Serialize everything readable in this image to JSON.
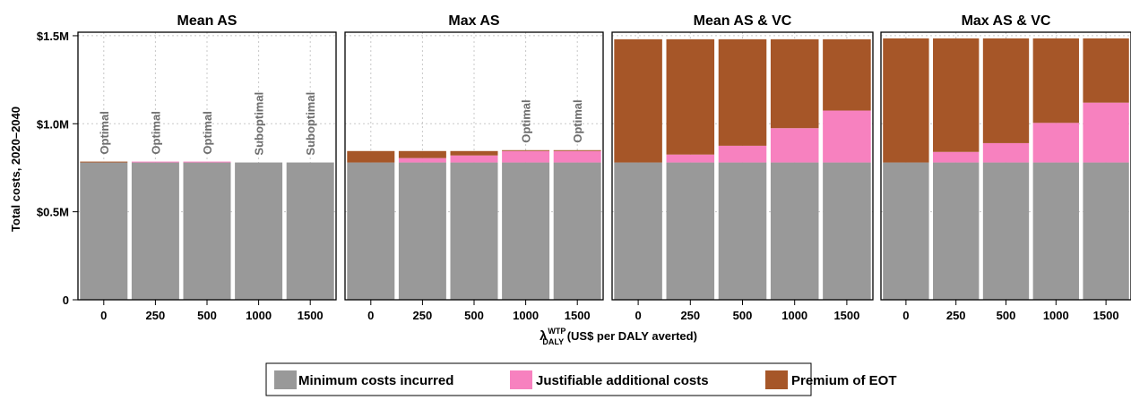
{
  "chart_data": {
    "type": "bar",
    "stacked": true,
    "panels": [
      {
        "title": "Mean AS",
        "categories": [
          "0",
          "250",
          "500",
          "1000",
          "1500"
        ],
        "series": [
          {
            "name": "Minimum costs incurred",
            "values": [
              780000,
              780000,
              780000,
              780000,
              780000
            ]
          },
          {
            "name": "Justifiable additional costs",
            "values": [
              0,
              5000,
              5000,
              0,
              0
            ]
          },
          {
            "name": "Premium of EOT",
            "values": [
              5000,
              0,
              0,
              0,
              0
            ]
          }
        ],
        "annotations": [
          "Optimal",
          "Optimal",
          "Optimal",
          "Suboptimal",
          "Suboptimal"
        ]
      },
      {
        "title": "Max AS",
        "categories": [
          "0",
          "250",
          "500",
          "1000",
          "1500"
        ],
        "series": [
          {
            "name": "Minimum costs incurred",
            "values": [
              780000,
              780000,
              780000,
              780000,
              780000
            ]
          },
          {
            "name": "Justifiable additional costs",
            "values": [
              0,
              25000,
              40000,
              65000,
              65000
            ]
          },
          {
            "name": "Premium of EOT",
            "values": [
              65000,
              40000,
              25000,
              5000,
              5000
            ]
          }
        ],
        "annotations": [
          "",
          "",
          "",
          "Optimal",
          "Optimal"
        ]
      },
      {
        "title": "Mean AS & VC",
        "categories": [
          "0",
          "250",
          "500",
          "1000",
          "1500"
        ],
        "series": [
          {
            "name": "Minimum costs incurred",
            "values": [
              780000,
              780000,
              780000,
              780000,
              780000
            ]
          },
          {
            "name": "Justifiable additional costs",
            "values": [
              0,
              45000,
              95000,
              195000,
              295000
            ]
          },
          {
            "name": "Premium of EOT",
            "values": [
              700000,
              655000,
              605000,
              505000,
              405000
            ]
          }
        ],
        "annotations": [
          "",
          "",
          "",
          "",
          ""
        ]
      },
      {
        "title": "Max AS & VC",
        "categories": [
          "0",
          "250",
          "500",
          "1000",
          "1500"
        ],
        "series": [
          {
            "name": "Minimum costs incurred",
            "values": [
              780000,
              780000,
              780000,
              780000,
              780000
            ]
          },
          {
            "name": "Justifiable additional costs",
            "values": [
              0,
              60000,
              110000,
              225000,
              340000
            ]
          },
          {
            "name": "Premium of EOT",
            "values": [
              705000,
              645000,
              595000,
              480000,
              365000
            ]
          }
        ],
        "annotations": [
          "",
          "",
          "",
          "",
          ""
        ]
      }
    ],
    "ylabel": "Total costs, 2020–2040",
    "xlabel_main": "λ",
    "xlabel_sub": "DALY",
    "xlabel_sup": "WTP",
    "xlabel_rest": " (US$ per DALY averted)",
    "ylim": [
      0,
      1520000
    ],
    "yticks": [
      0,
      500000,
      1000000,
      1500000
    ],
    "ytick_labels": [
      "0",
      "$0.5M",
      "$1.0M",
      "$1.5M"
    ],
    "legend": [
      {
        "label": "Minimum costs incurred",
        "color": "#999999"
      },
      {
        "label": "Justifiable additional costs",
        "color": "#f781bf"
      },
      {
        "label": "Premium of EOT",
        "color": "#a65628"
      }
    ],
    "legend_position": "bottom",
    "grid": true,
    "colors": {
      "min": "#999999",
      "just": "#f781bf",
      "eot": "#a65628",
      "annotation": "#6e6e6e"
    }
  }
}
